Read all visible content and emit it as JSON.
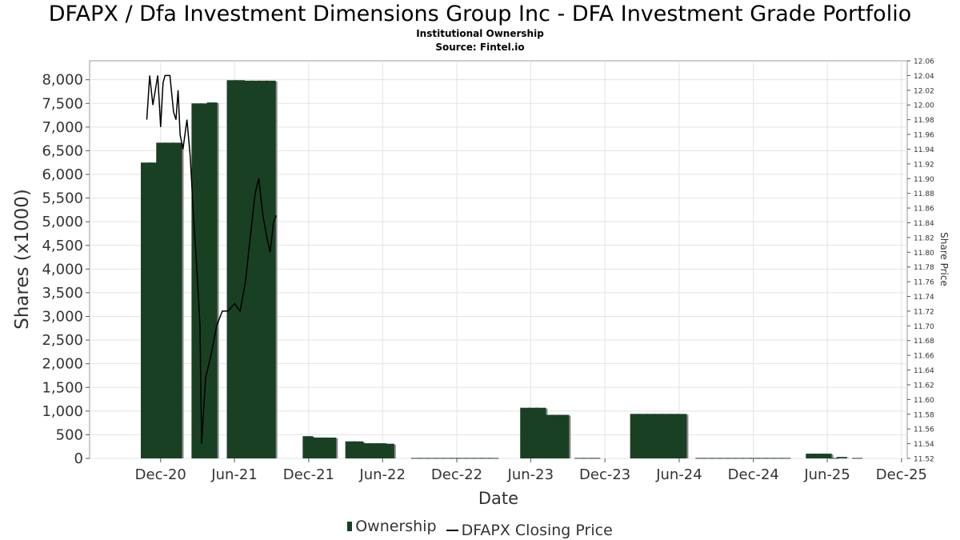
{
  "header": {
    "title": "DFAPX / Dfa Investment Dimensions Group Inc - DFA Investment Grade Portfolio",
    "subtitle": "Institutional Ownership",
    "source": "Source: Fintel.io"
  },
  "legend": {
    "ownership_label": "Ownership",
    "price_label": "DFAPX Closing Price"
  },
  "colors": {
    "bar_fill": "#1a4024",
    "bar_shadow": "#8c8c8c",
    "price_line": "#000000",
    "grid": "#e3e3e3"
  },
  "chart_data": {
    "type": "bar",
    "title": "DFAPX / Dfa Investment Dimensions Group Inc - DFA Investment Grade Portfolio",
    "subtitle": "Institutional Ownership",
    "xlabel": "Date",
    "ylabel": "Shares (x1000)",
    "y2label": "Share Price",
    "grid": true,
    "legend_position": "bottom",
    "xlim": [
      "2020-06-09",
      "2025-12-15"
    ],
    "ylim": [
      0,
      8400
    ],
    "y2lim": [
      11.52,
      12.06
    ],
    "x_ticks": [
      {
        "date": "2020-12-01",
        "label": "Dec-20"
      },
      {
        "date": "2021-06-01",
        "label": "Jun-21"
      },
      {
        "date": "2021-12-01",
        "label": "Dec-21"
      },
      {
        "date": "2022-06-01",
        "label": "Jun-22"
      },
      {
        "date": "2022-12-01",
        "label": "Dec-22"
      },
      {
        "date": "2023-06-01",
        "label": "Jun-23"
      },
      {
        "date": "2023-12-01",
        "label": "Dec-23"
      },
      {
        "date": "2024-06-01",
        "label": "Jun-24"
      },
      {
        "date": "2024-12-01",
        "label": "Dec-24"
      },
      {
        "date": "2025-06-01",
        "label": "Jun-25"
      },
      {
        "date": "2025-12-01",
        "label": "Dec-25"
      }
    ],
    "y_ticks": [
      {
        "value": 0,
        "label": "0"
      },
      {
        "value": 500,
        "label": "500"
      },
      {
        "value": 1000,
        "label": "1,000"
      },
      {
        "value": 1500,
        "label": "1,500"
      },
      {
        "value": 2000,
        "label": "2,000"
      },
      {
        "value": 2500,
        "label": "2,500"
      },
      {
        "value": 3000,
        "label": "3,000"
      },
      {
        "value": 3500,
        "label": "3,500"
      },
      {
        "value": 4000,
        "label": "4,000"
      },
      {
        "value": 4500,
        "label": "4,500"
      },
      {
        "value": 5000,
        "label": "5,000"
      },
      {
        "value": 5500,
        "label": "5,500"
      },
      {
        "value": 6000,
        "label": "6,000"
      },
      {
        "value": 6500,
        "label": "6,500"
      },
      {
        "value": 7000,
        "label": "7,000"
      },
      {
        "value": 7500,
        "label": "7,500"
      },
      {
        "value": 8000,
        "label": "8,000"
      }
    ],
    "y2_ticks": [
      {
        "value": 11.52,
        "label": "11.52"
      },
      {
        "value": 11.54,
        "label": "11.54"
      },
      {
        "value": 11.56,
        "label": "11.56"
      },
      {
        "value": 11.58,
        "label": "11.58"
      },
      {
        "value": 11.6,
        "label": "11.60"
      },
      {
        "value": 11.62,
        "label": "11.62"
      },
      {
        "value": 11.64,
        "label": "11.64"
      },
      {
        "value": 11.66,
        "label": "11.66"
      },
      {
        "value": 11.68,
        "label": "11.68"
      },
      {
        "value": 11.7,
        "label": "11.70"
      },
      {
        "value": 11.72,
        "label": "11.72"
      },
      {
        "value": 11.74,
        "label": "11.74"
      },
      {
        "value": 11.76,
        "label": "11.76"
      },
      {
        "value": 11.78,
        "label": "11.78"
      },
      {
        "value": 11.8,
        "label": "11.80"
      },
      {
        "value": 11.82,
        "label": "11.82"
      },
      {
        "value": 11.84,
        "label": "11.84"
      },
      {
        "value": 11.86,
        "label": "11.86"
      },
      {
        "value": 11.88,
        "label": "11.88"
      },
      {
        "value": 11.9,
        "label": "11.90"
      },
      {
        "value": 11.92,
        "label": "11.92"
      },
      {
        "value": 11.94,
        "label": "11.94"
      },
      {
        "value": 11.96,
        "label": "11.96"
      },
      {
        "value": 11.98,
        "label": "11.98"
      },
      {
        "value": 12.0,
        "label": "12.00"
      },
      {
        "value": 12.02,
        "label": "12.02"
      },
      {
        "value": 12.04,
        "label": "12.04"
      },
      {
        "value": 12.06,
        "label": "12.06"
      }
    ],
    "series": [
      {
        "name": "Ownership",
        "type": "bar",
        "points": [
          {
            "date": "2020-10-26",
            "value": 6250
          },
          {
            "date": "2020-11-14",
            "value": 6250
          },
          {
            "date": "2020-12-03",
            "value": 6670
          },
          {
            "date": "2020-12-22",
            "value": 6670
          },
          {
            "date": "2021-01-10",
            "value": 6670
          },
          {
            "date": "2021-02-28",
            "value": 7500
          },
          {
            "date": "2021-03-19",
            "value": 7500
          },
          {
            "date": "2021-04-07",
            "value": 7520
          },
          {
            "date": "2021-05-26",
            "value": 7990
          },
          {
            "date": "2021-06-14",
            "value": 7990
          },
          {
            "date": "2021-07-03",
            "value": 7980
          },
          {
            "date": "2021-07-22",
            "value": 7980
          },
          {
            "date": "2021-08-10",
            "value": 7980
          },
          {
            "date": "2021-08-29",
            "value": 7980
          },
          {
            "date": "2021-11-29",
            "value": 470
          },
          {
            "date": "2021-12-18",
            "value": 440
          },
          {
            "date": "2022-01-06",
            "value": 440
          },
          {
            "date": "2022-01-25",
            "value": 440
          },
          {
            "date": "2022-03-14",
            "value": 360
          },
          {
            "date": "2022-04-02",
            "value": 360
          },
          {
            "date": "2022-04-21",
            "value": 320
          },
          {
            "date": "2022-05-10",
            "value": 320
          },
          {
            "date": "2022-05-29",
            "value": 320
          },
          {
            "date": "2022-06-17",
            "value": 310
          },
          {
            "date": "2022-08-23",
            "value": 10
          },
          {
            "date": "2022-09-11",
            "value": 10
          },
          {
            "date": "2022-09-30",
            "value": 10
          },
          {
            "date": "2022-10-19",
            "value": 10
          },
          {
            "date": "2022-11-07",
            "value": 10
          },
          {
            "date": "2022-11-26",
            "value": 10
          },
          {
            "date": "2022-12-15",
            "value": 10
          },
          {
            "date": "2023-01-03",
            "value": 10
          },
          {
            "date": "2023-01-22",
            "value": 10
          },
          {
            "date": "2023-02-10",
            "value": 10
          },
          {
            "date": "2023-03-01",
            "value": 10
          },
          {
            "date": "2023-05-19",
            "value": 1070
          },
          {
            "date": "2023-06-07",
            "value": 1070
          },
          {
            "date": "2023-06-26",
            "value": 1070
          },
          {
            "date": "2023-07-15",
            "value": 920
          },
          {
            "date": "2023-08-03",
            "value": 920
          },
          {
            "date": "2023-08-22",
            "value": 920
          },
          {
            "date": "2023-09-30",
            "value": 10
          },
          {
            "date": "2023-10-19",
            "value": 10
          },
          {
            "date": "2023-11-07",
            "value": 10
          },
          {
            "date": "2024-02-14",
            "value": 940
          },
          {
            "date": "2024-03-04",
            "value": 940
          },
          {
            "date": "2024-03-23",
            "value": 940
          },
          {
            "date": "2024-04-11",
            "value": 940
          },
          {
            "date": "2024-04-30",
            "value": 940
          },
          {
            "date": "2024-05-19",
            "value": 940
          },
          {
            "date": "2024-06-07",
            "value": 940
          },
          {
            "date": "2024-07-24",
            "value": 10
          },
          {
            "date": "2024-08-12",
            "value": 10
          },
          {
            "date": "2024-08-31",
            "value": 10
          },
          {
            "date": "2024-09-19",
            "value": 10
          },
          {
            "date": "2024-10-08",
            "value": 10
          },
          {
            "date": "2024-10-27",
            "value": 10
          },
          {
            "date": "2024-11-15",
            "value": 10
          },
          {
            "date": "2024-12-04",
            "value": 10
          },
          {
            "date": "2024-12-23",
            "value": 10
          },
          {
            "date": "2025-01-11",
            "value": 10
          },
          {
            "date": "2025-01-30",
            "value": 10
          },
          {
            "date": "2025-02-18",
            "value": 10
          },
          {
            "date": "2025-04-22",
            "value": 100
          },
          {
            "date": "2025-05-11",
            "value": 100
          },
          {
            "date": "2025-05-30",
            "value": 100
          },
          {
            "date": "2025-06-18",
            "value": 10
          },
          {
            "date": "2025-07-07",
            "value": 30
          },
          {
            "date": "2025-08-14",
            "value": 10
          }
        ]
      },
      {
        "name": "DFAPX Closing Price",
        "type": "line",
        "axis": "right",
        "points": [
          {
            "date": "2020-10-28",
            "value": 11.98
          },
          {
            "date": "2020-11-04",
            "value": 12.04
          },
          {
            "date": "2020-11-12",
            "value": 12.0
          },
          {
            "date": "2020-11-24",
            "value": 12.04
          },
          {
            "date": "2020-12-01",
            "value": 11.97
          },
          {
            "date": "2020-12-07",
            "value": 12.03
          },
          {
            "date": "2020-12-12",
            "value": 12.04
          },
          {
            "date": "2020-12-24",
            "value": 12.04
          },
          {
            "date": "2021-01-02",
            "value": 11.99
          },
          {
            "date": "2021-01-08",
            "value": 11.98
          },
          {
            "date": "2021-01-13",
            "value": 12.02
          },
          {
            "date": "2021-01-18",
            "value": 11.96
          },
          {
            "date": "2021-01-25",
            "value": 11.94
          },
          {
            "date": "2021-02-04",
            "value": 11.98
          },
          {
            "date": "2021-02-12",
            "value": 11.93
          },
          {
            "date": "2021-02-20",
            "value": 11.85
          },
          {
            "date": "2021-02-28",
            "value": 11.78
          },
          {
            "date": "2021-03-08",
            "value": 11.7
          },
          {
            "date": "2021-03-12",
            "value": 11.54
          },
          {
            "date": "2021-03-22",
            "value": 11.63
          },
          {
            "date": "2021-04-04",
            "value": 11.66
          },
          {
            "date": "2021-04-18",
            "value": 11.7
          },
          {
            "date": "2021-05-02",
            "value": 11.72
          },
          {
            "date": "2021-05-16",
            "value": 11.72
          },
          {
            "date": "2021-06-01",
            "value": 11.73
          },
          {
            "date": "2021-06-15",
            "value": 11.72
          },
          {
            "date": "2021-06-28",
            "value": 11.76
          },
          {
            "date": "2021-07-10",
            "value": 11.82
          },
          {
            "date": "2021-07-22",
            "value": 11.88
          },
          {
            "date": "2021-07-31",
            "value": 11.9
          },
          {
            "date": "2021-08-10",
            "value": 11.85
          },
          {
            "date": "2021-08-20",
            "value": 11.82
          },
          {
            "date": "2021-08-28",
            "value": 11.8
          },
          {
            "date": "2021-09-05",
            "value": 11.84
          },
          {
            "date": "2021-09-12",
            "value": 11.85
          }
        ]
      }
    ]
  }
}
